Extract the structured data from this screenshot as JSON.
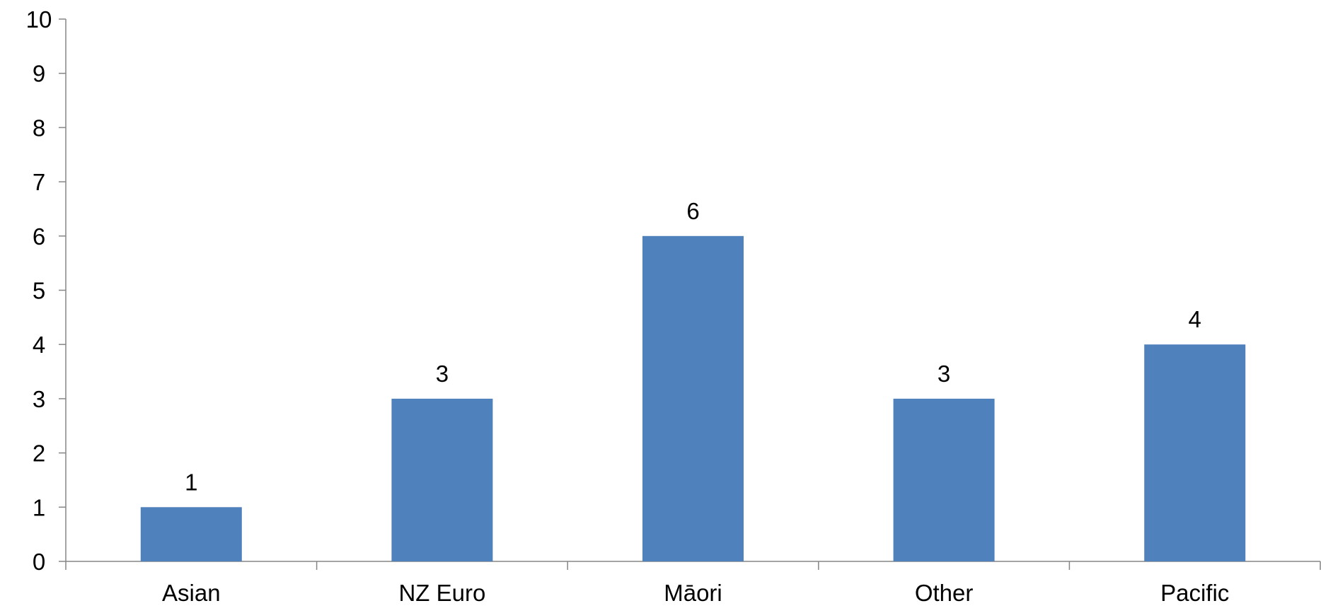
{
  "chart_data": {
    "type": "bar",
    "categories": [
      "Asian",
      "NZ Euro",
      "Māori",
      "Other",
      "Pacific"
    ],
    "values": [
      1,
      3,
      6,
      3,
      4
    ],
    "color": "#4f81bd",
    "ylim": [
      0,
      10
    ],
    "yticks": [
      0,
      1,
      2,
      3,
      4,
      5,
      6,
      7,
      8,
      9,
      10
    ],
    "grid": false,
    "data_labels": true
  }
}
